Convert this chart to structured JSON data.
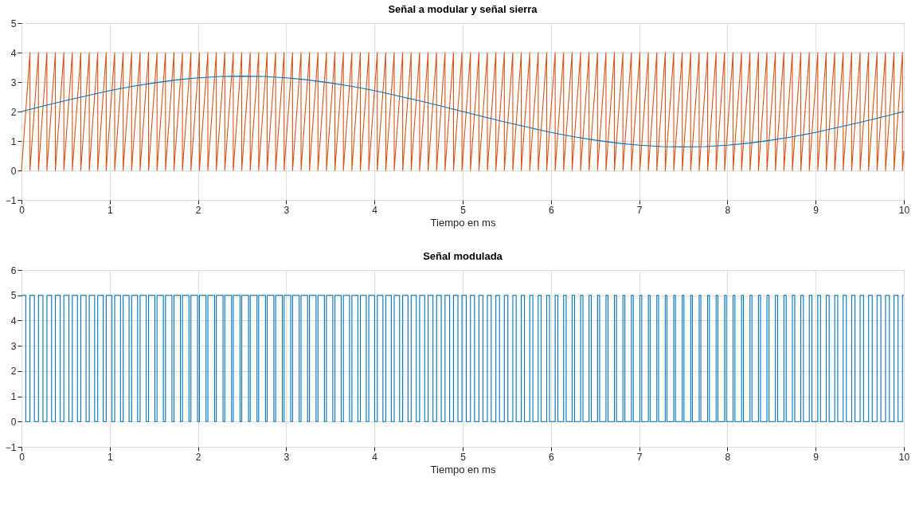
{
  "chart_data": [
    {
      "type": "line",
      "title": "Señal a modular y señal sierra",
      "xlabel": "Tiempo en ms",
      "xlim": [
        0,
        10
      ],
      "xticks": [
        0,
        1,
        2,
        3,
        4,
        5,
        6,
        7,
        8,
        9,
        10
      ],
      "ylim": [
        -1,
        5
      ],
      "yticks": [
        -1,
        0,
        1,
        2,
        3,
        4,
        5
      ],
      "grid": true,
      "line_style": "solid",
      "series": [
        {
          "color": "#d95319",
          "x": [
            0,
            0.096,
            0.096,
            0.192,
            0.192,
            0.288,
            0.288,
            0.384,
            0.384,
            0.48,
            0.48,
            0.576,
            0.576,
            0.672,
            0.672,
            0.768,
            0.768,
            0.864,
            0.864,
            0.96,
            0.96,
            1.056,
            1.056,
            1.152,
            1.152,
            1.248,
            1.248,
            1.344,
            1.344,
            1.44,
            1.44,
            1.536,
            1.536,
            1.632,
            1.632,
            1.728,
            1.728,
            1.824,
            1.824,
            1.92,
            1.92,
            2.016,
            2.016,
            2.112,
            2.112,
            2.208,
            2.208,
            2.304,
            2.304,
            2.4,
            2.4,
            2.496,
            2.496,
            2.592,
            2.592,
            2.688,
            2.688,
            2.784,
            2.784,
            2.88,
            2.88,
            2.976,
            2.976,
            3.072,
            3.072,
            3.168,
            3.168,
            3.264,
            3.264,
            3.36,
            3.36,
            3.456,
            3.456,
            3.552,
            3.552,
            3.648,
            3.648,
            3.744,
            3.744,
            3.84,
            3.84,
            3.936,
            3.936,
            4.032,
            4.032,
            4.128,
            4.128,
            4.224,
            4.224,
            4.32,
            4.32,
            4.416,
            4.416,
            4.512,
            4.512,
            4.608,
            4.608,
            4.704,
            4.704,
            4.8,
            4.8,
            4.896,
            4.896,
            4.992,
            4.992,
            5.088,
            5.088,
            5.184,
            5.184,
            5.28,
            5.28,
            5.376,
            5.376,
            5.472,
            5.472,
            5.568,
            5.568,
            5.664,
            5.664,
            5.76,
            5.76,
            5.856,
            5.856,
            5.952,
            5.952,
            6.048,
            6.048,
            6.144,
            6.144,
            6.24,
            6.24,
            6.336,
            6.336,
            6.432,
            6.432,
            6.528,
            6.528,
            6.624,
            6.624,
            6.72,
            6.72,
            6.816,
            6.816,
            6.912,
            6.912,
            7.008,
            7.008,
            7.104,
            7.104,
            7.2,
            7.2,
            7.296,
            7.296,
            7.392,
            7.392,
            7.488,
            7.488,
            7.584,
            7.584,
            7.68,
            7.68,
            7.776,
            7.776,
            7.872,
            7.872,
            7.968,
            7.968,
            8.064,
            8.064,
            8.16,
            8.16,
            8.256,
            8.256,
            8.352,
            8.352,
            8.448,
            8.448,
            8.544,
            8.544,
            8.64,
            8.64,
            8.736,
            8.736,
            8.832,
            8.832,
            8.928,
            8.928,
            9.024,
            9.024,
            9.12,
            9.12,
            9.216,
            9.216,
            9.312,
            9.312,
            9.408,
            9.408,
            9.504,
            9.504,
            9.6,
            9.6,
            9.696,
            9.696,
            9.792,
            9.792,
            9.888,
            9.888,
            9.984,
            9.984,
            10
          ],
          "values": [
            0,
            4,
            0,
            4,
            0,
            4,
            0,
            4,
            0,
            4,
            0,
            4,
            0,
            4,
            0,
            4,
            0,
            4,
            0,
            4,
            0,
            4,
            0,
            4,
            0,
            4,
            0,
            4,
            0,
            4,
            0,
            4,
            0,
            4,
            0,
            4,
            0,
            4,
            0,
            4,
            0,
            4,
            0,
            4,
            0,
            4,
            0,
            4,
            0,
            4,
            0,
            4,
            0,
            4,
            0,
            4,
            0,
            4,
            0,
            4,
            0,
            4,
            0,
            4,
            0,
            4,
            0,
            4,
            0,
            4,
            0,
            4,
            0,
            4,
            0,
            4,
            0,
            4,
            0,
            4,
            0,
            4,
            0,
            4,
            0,
            4,
            0,
            4,
            0,
            4,
            0,
            4,
            0,
            4,
            0,
            4,
            0,
            4,
            0,
            4,
            0,
            4,
            0,
            4,
            0,
            4,
            0,
            4,
            0,
            4,
            0,
            4,
            0,
            4,
            0,
            4,
            0,
            4,
            0,
            4,
            0,
            4,
            0,
            4,
            0,
            4,
            0,
            4,
            0,
            4,
            0,
            4,
            0,
            4,
            0,
            4,
            0,
            4,
            0,
            4,
            0,
            4,
            0,
            4,
            0,
            4,
            0,
            4,
            0,
            4,
            0,
            4,
            0,
            4,
            0,
            4,
            0,
            4,
            0,
            4,
            0,
            4,
            0,
            4,
            0,
            4,
            0,
            4,
            0,
            4,
            0,
            4,
            0,
            4,
            0,
            4,
            0,
            4,
            0,
            4,
            0,
            4,
            0,
            4,
            0,
            4,
            0,
            4,
            0,
            4,
            0,
            4,
            0,
            4,
            0,
            4,
            0,
            4,
            0,
            4,
            0,
            4,
            0,
            4,
            0,
            4,
            0,
            4,
            0,
            0.67
          ]
        },
        {
          "color": "#0072bd",
          "x": [
            0,
            0.25,
            0.5,
            0.75,
            1,
            1.25,
            1.5,
            1.75,
            2,
            2.25,
            2.5,
            2.75,
            3,
            3.25,
            3.5,
            3.75,
            4,
            4.25,
            4.5,
            4.75,
            5,
            5.25,
            5.5,
            5.75,
            6,
            6.25,
            6.5,
            6.75,
            7,
            7.25,
            7.5,
            7.75,
            8,
            8.25,
            8.5,
            8.75,
            9,
            9.25,
            9.5,
            9.75,
            10
          ],
          "values": [
            2,
            2.19,
            2.37,
            2.54,
            2.71,
            2.85,
            2.97,
            3.07,
            3.14,
            3.19,
            3.2,
            3.19,
            3.14,
            3.07,
            2.97,
            2.85,
            2.71,
            2.54,
            2.37,
            2.19,
            2,
            1.81,
            1.63,
            1.46,
            1.29,
            1.15,
            1.03,
            0.93,
            0.86,
            0.81,
            0.8,
            0.81,
            0.86,
            0.93,
            1.03,
            1.15,
            1.29,
            1.46,
            1.63,
            1.81,
            2
          ]
        }
      ]
    },
    {
      "type": "step",
      "title": "Señal modulada",
      "xlabel": "Tiempo en ms",
      "xlim": [
        0,
        10
      ],
      "xticks": [
        0,
        1,
        2,
        3,
        4,
        5,
        6,
        7,
        8,
        9,
        10
      ],
      "ylim": [
        -1,
        6
      ],
      "yticks": [
        -1,
        0,
        1,
        2,
        3,
        4,
        5,
        6
      ],
      "grid": true,
      "line_style": "solid",
      "series": [
        {
          "color": "#0072bd",
          "x": [
            0,
            0.048,
            0.096,
            0.146,
            0.192,
            0.243,
            0.288,
            0.341,
            0.384,
            0.439,
            0.48,
            0.537,
            0.576,
            0.634,
            0.672,
            0.732,
            0.768,
            0.829,
            0.864,
            0.927,
            0.96,
            1.024,
            1.056,
            1.122,
            1.152,
            1.219,
            1.248,
            1.316,
            1.344,
            1.414,
            1.44,
            1.511,
            1.536,
            1.608,
            1.632,
            1.705,
            1.728,
            1.801,
            1.824,
            1.898,
            1.92,
            1.995,
            2.016,
            2.091,
            2.112,
            2.188,
            2.208,
            2.284,
            2.304,
            2.381,
            2.4,
            2.477,
            2.496,
            2.573,
            2.592,
            2.669,
            2.688,
            2.765,
            2.784,
            2.86,
            2.88,
            2.956,
            2.976,
            3.051,
            3.072,
            3.147,
            3.168,
            3.242,
            3.264,
            3.338,
            3.36,
            3.433,
            3.456,
            3.528,
            3.552,
            3.623,
            3.648,
            3.718,
            3.744,
            3.812,
            3.84,
            3.907,
            3.936,
            4.002,
            4.032,
            4.096,
            4.128,
            4.191,
            4.224,
            4.285,
            4.32,
            4.38,
            4.416,
            4.474,
            4.512,
            4.569,
            4.608,
            4.663,
            4.704,
            4.757,
            4.8,
            4.852,
            4.896,
            4.946,
            4.992,
            5.04,
            5.088,
            5.134,
            5.184,
            5.229,
            5.28,
            5.323,
            5.376,
            5.417,
            5.472,
            5.512,
            5.568,
            5.606,
            5.664,
            5.7,
            5.76,
            5.795,
            5.856,
            5.889,
            5.952,
            5.984,
            6.048,
            6.078,
            6.144,
            6.173,
            6.24,
            6.268,
            6.336,
            6.363,
            6.432,
            6.457,
            6.528,
            6.552,
            6.624,
            6.647,
            6.72,
            6.743,
            6.816,
            6.838,
            6.912,
            6.933,
            7.008,
            7.029,
            7.104,
            7.124,
            7.2,
            7.22,
            7.296,
            7.315,
            7.392,
            7.411,
            7.488,
            7.507,
            7.584,
            7.603,
            7.68,
            7.699,
            7.776,
            7.796,
            7.872,
            7.892,
            7.968,
            7.988,
            8.064,
            8.085,
            8.16,
            8.182,
            8.256,
            8.278,
            8.352,
            8.375,
            8.448,
            8.472,
            8.544,
            8.569,
            8.64,
            8.666,
            8.736,
            8.763,
            8.832,
            8.861,
            8.928,
            8.958,
            9.024,
            9.055,
            9.12,
            9.153,
            9.216,
            9.25,
            9.312,
            9.348,
            9.408,
            9.446,
            9.504,
            9.543,
            9.6,
            9.641,
            9.696,
            9.739,
            9.792,
            9.836,
            9.888,
            9.934,
            9.984,
            10
          ],
          "values": [
            5,
            0,
            5,
            0,
            5,
            0,
            5,
            0,
            5,
            0,
            5,
            0,
            5,
            0,
            5,
            0,
            5,
            0,
            5,
            0,
            5,
            0,
            5,
            0,
            5,
            0,
            5,
            0,
            5,
            0,
            5,
            0,
            5,
            0,
            5,
            0,
            5,
            0,
            5,
            0,
            5,
            0,
            5,
            0,
            5,
            0,
            5,
            0,
            5,
            0,
            5,
            0,
            5,
            0,
            5,
            0,
            5,
            0,
            5,
            0,
            5,
            0,
            5,
            0,
            5,
            0,
            5,
            0,
            5,
            0,
            5,
            0,
            5,
            0,
            5,
            0,
            5,
            0,
            5,
            0,
            5,
            0,
            5,
            0,
            5,
            0,
            5,
            0,
            5,
            0,
            5,
            0,
            5,
            0,
            5,
            0,
            5,
            0,
            5,
            0,
            5,
            0,
            5,
            0,
            5,
            0,
            5,
            0,
            5,
            0,
            5,
            0,
            5,
            0,
            5,
            0,
            5,
            0,
            5,
            0,
            5,
            0,
            5,
            0,
            5,
            0,
            5,
            0,
            5,
            0,
            5,
            0,
            5,
            0,
            5,
            0,
            5,
            0,
            5,
            0,
            5,
            0,
            5,
            0,
            5,
            0,
            5,
            0,
            5,
            0,
            5,
            0,
            5,
            0,
            5,
            0,
            5,
            0,
            5,
            0,
            5,
            0,
            5,
            0,
            5,
            0,
            5,
            0,
            5,
            0,
            5,
            0,
            5,
            0,
            5,
            0,
            5,
            0,
            5,
            0,
            5,
            0,
            5,
            0,
            5,
            0,
            5,
            0,
            5,
            0,
            5,
            0,
            5,
            0,
            5,
            0,
            5,
            0,
            5,
            0,
            5,
            0,
            5,
            0,
            5,
            0,
            5,
            0,
            5,
            5
          ]
        }
      ]
    }
  ]
}
